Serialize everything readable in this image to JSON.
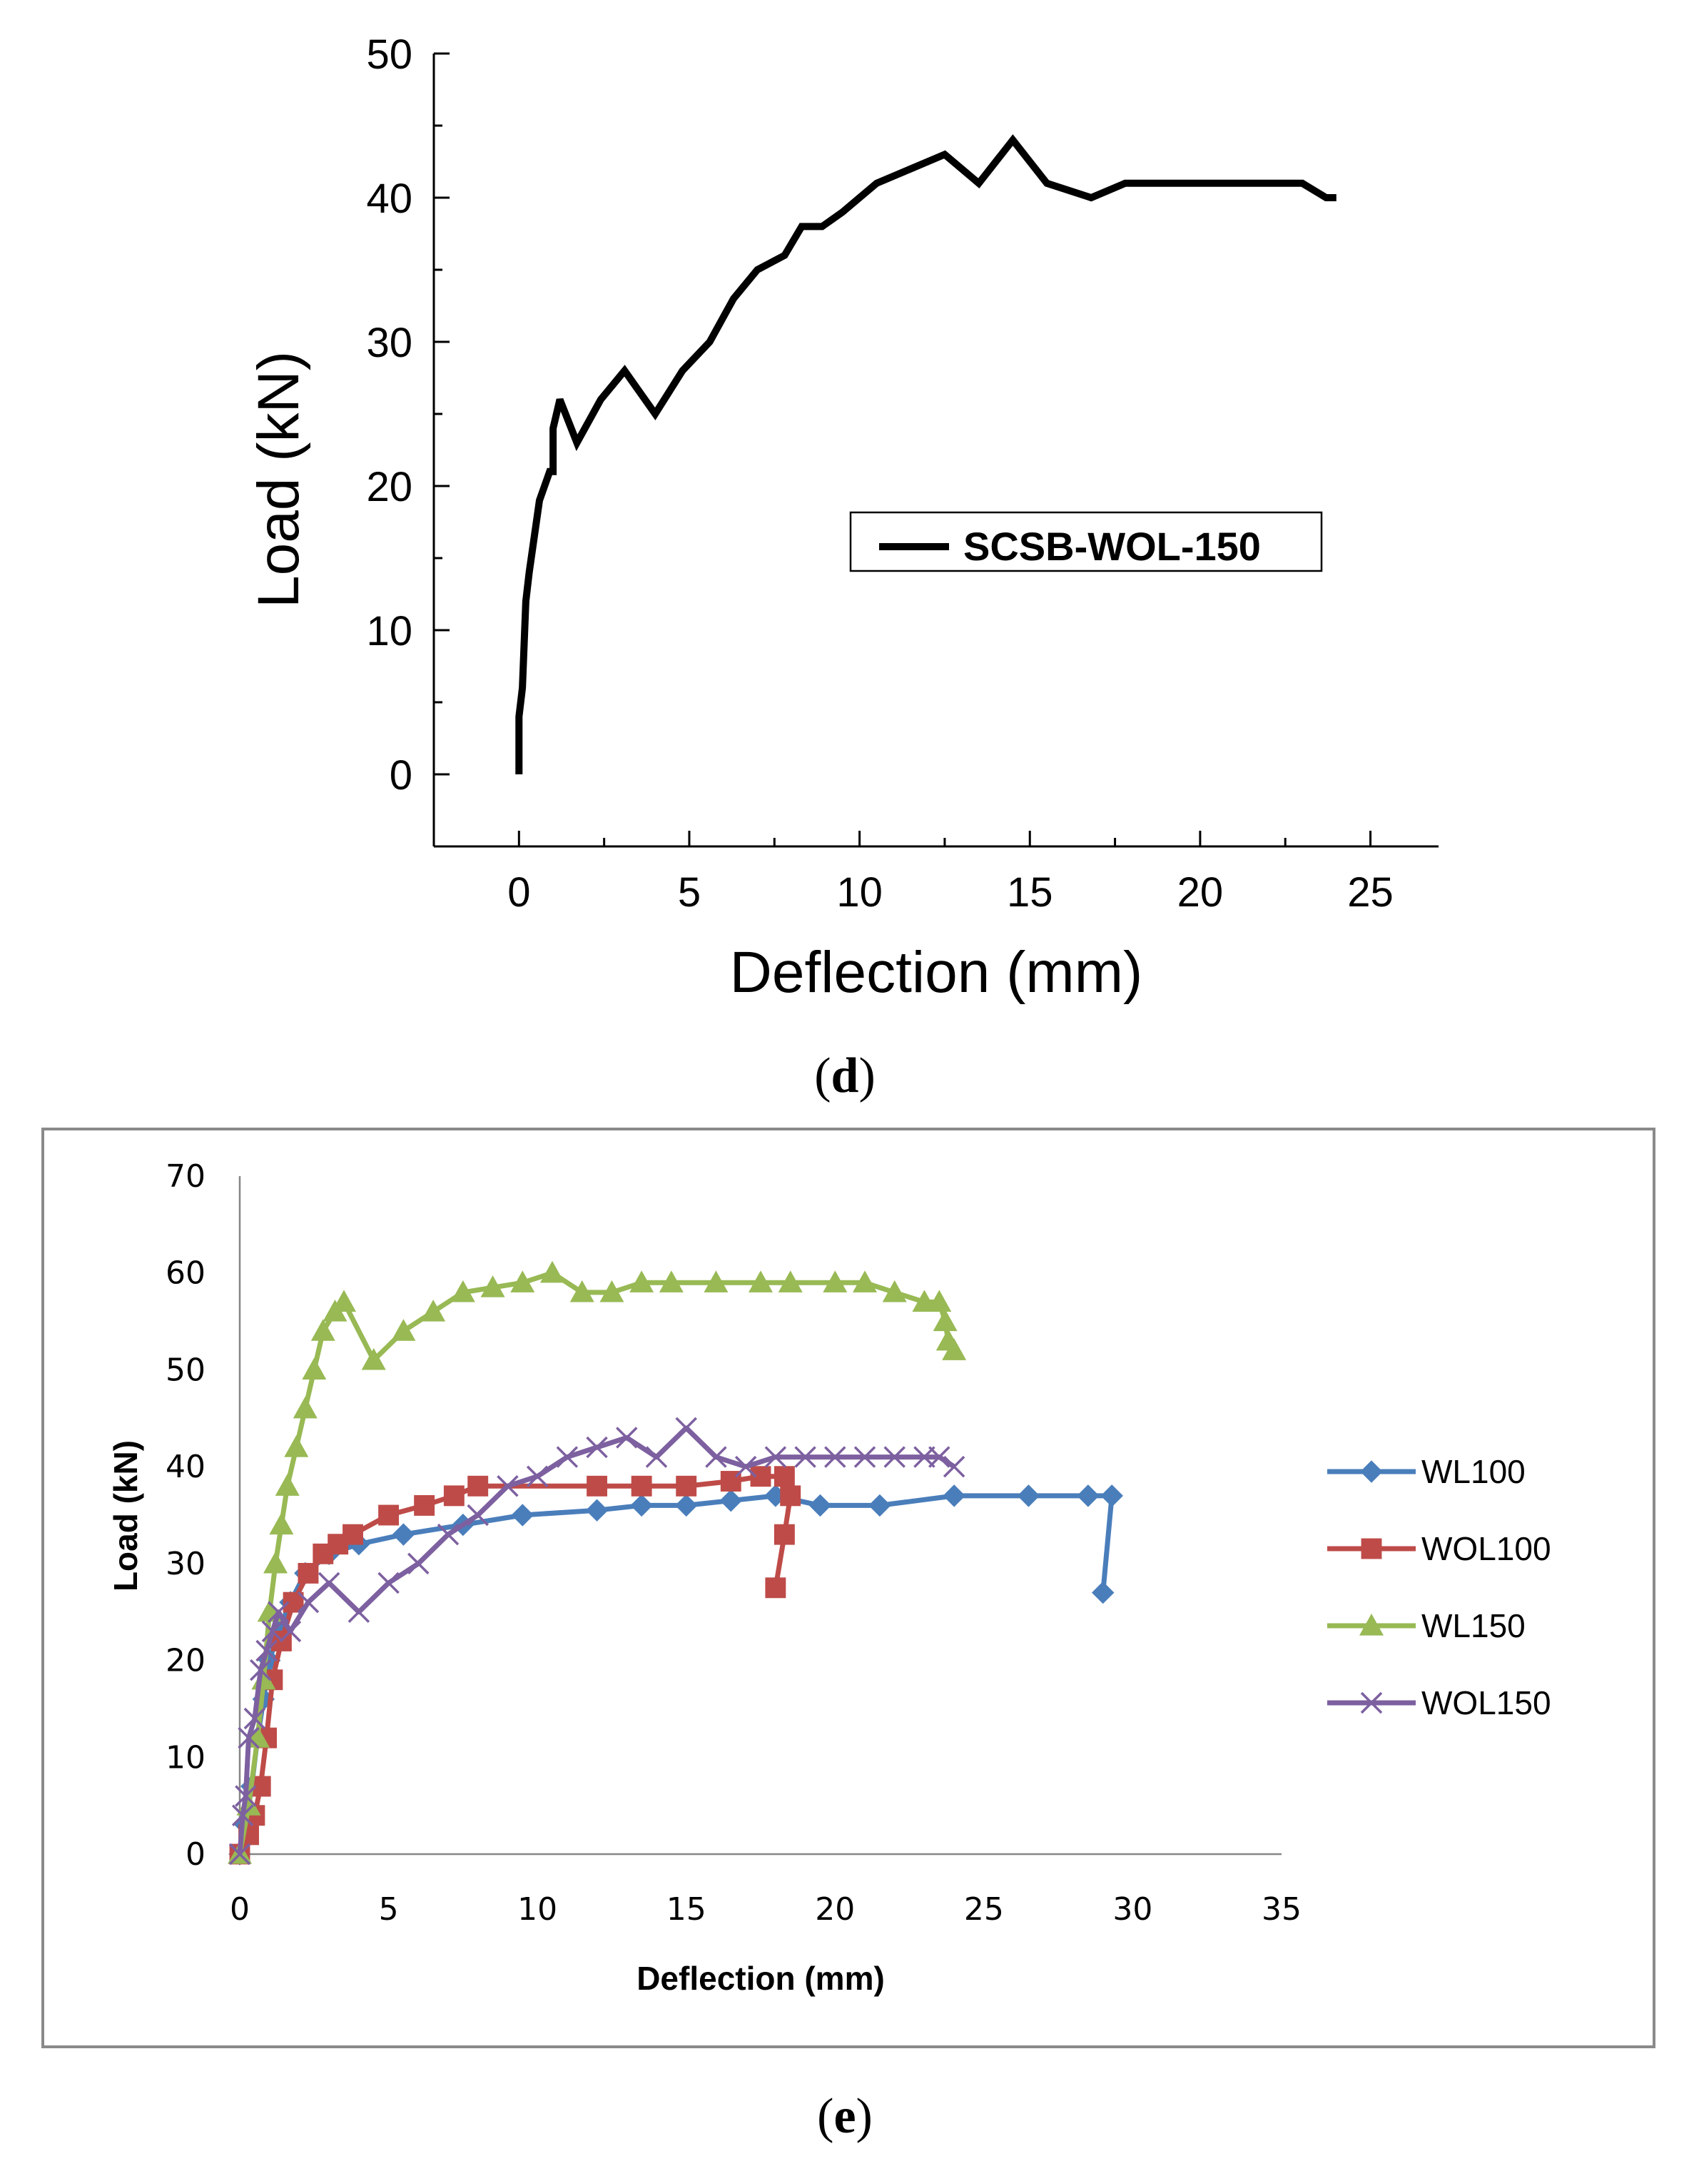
{
  "chart_data": [
    {
      "type": "line",
      "panel_label": "(d)",
      "panel_label_open": "(",
      "panel_label_letter": "d",
      "panel_label_close": ")",
      "xlabel": "Deflection (mm)",
      "ylabel": "Load (kN)",
      "xlim": [
        -2.5,
        27
      ],
      "ylim": [
        -5,
        50
      ],
      "xticks": [
        0,
        5,
        10,
        15,
        20,
        25
      ],
      "yticks": [
        0,
        10,
        20,
        30,
        40,
        50
      ],
      "grid": false,
      "legend_position": "center-right",
      "series": [
        {
          "name": "SCSB-WOL-150",
          "color": "#000000",
          "x": [
            0,
            0,
            0.1,
            0.2,
            0.3,
            0.6,
            0.9,
            1.0,
            1.0,
            1.2,
            1.7,
            2.4,
            3.1,
            4.0,
            4.8,
            5.6,
            6.3,
            7.0,
            7.8,
            8.3,
            8.9,
            9.5,
            10.5,
            11.5,
            12.5,
            13.5,
            14.5,
            15.5,
            16.8,
            17.8,
            19.0,
            20.0,
            21.0,
            22.0,
            23.0,
            23.7,
            24.0
          ],
          "y": [
            0,
            4,
            6,
            12,
            14,
            19,
            21,
            21,
            24,
            26,
            23,
            26,
            28,
            25,
            28,
            30,
            33,
            35,
            36,
            38,
            38,
            39,
            41,
            42,
            43,
            41,
            44,
            41,
            40,
            41,
            41,
            41,
            41,
            41,
            41,
            40,
            40
          ]
        }
      ]
    },
    {
      "type": "line",
      "panel_label": "(e)",
      "panel_label_open": "(",
      "panel_label_letter": "e",
      "panel_label_close": ")",
      "xlabel": "Deflection (mm)",
      "ylabel": "Load (kN)",
      "xlim": [
        0,
        35
      ],
      "ylim": [
        0,
        70
      ],
      "xticks": [
        0,
        5,
        10,
        15,
        20,
        25,
        30,
        35
      ],
      "yticks": [
        0,
        10,
        20,
        30,
        40,
        50,
        60,
        70
      ],
      "grid": false,
      "legend_position": "right",
      "series": [
        {
          "name": "WL100",
          "color": "#4a7ebb",
          "marker": "diamond",
          "x": [
            0,
            0.2,
            0.4,
            0.6,
            0.8,
            1.0,
            1.3,
            1.7,
            2.2,
            3.0,
            4.0,
            5.5,
            7.5,
            9.5,
            12.0,
            13.5,
            15.0,
            16.5,
            18.0,
            19.5,
            21.5,
            24.0,
            26.5,
            28.5,
            29.3,
            29.0
          ],
          "y": [
            0,
            3,
            7,
            12,
            16,
            20,
            23,
            26,
            29,
            31,
            32,
            33,
            34,
            35,
            35.5,
            36,
            36,
            36.5,
            37,
            36,
            36,
            37,
            37,
            37,
            37,
            27
          ]
        },
        {
          "name": "WOL100",
          "color": "#be4b48",
          "marker": "square",
          "x": [
            0,
            0.3,
            0.5,
            0.7,
            0.9,
            1.1,
            1.4,
            1.8,
            2.3,
            2.8,
            3.3,
            3.8,
            5.0,
            6.2,
            7.2,
            8.0,
            12.0,
            13.5,
            15.0,
            16.5,
            17.5,
            18.3,
            18.5,
            18.3,
            18.0
          ],
          "y": [
            0,
            2,
            4,
            7,
            12,
            18,
            22,
            26,
            29,
            31,
            32,
            33,
            35,
            36,
            37,
            38,
            38,
            38,
            38,
            38.5,
            39,
            39,
            37,
            33,
            27.5
          ]
        },
        {
          "name": "WL150",
          "color": "#98b954",
          "marker": "triangle",
          "x": [
            0,
            0.3,
            0.6,
            0.8,
            1.0,
            1.2,
            1.4,
            1.6,
            1.9,
            2.2,
            2.5,
            2.8,
            3.2,
            3.5,
            4.5,
            5.5,
            6.5,
            7.5,
            8.5,
            9.5,
            10.5,
            11.5,
            12.5,
            13.5,
            14.5,
            16.0,
            17.5,
            18.5,
            20.0,
            21.0,
            22.0,
            23.0,
            23.5,
            23.7,
            23.8,
            24.0
          ],
          "y": [
            0,
            5,
            12,
            18,
            25,
            30,
            34,
            38,
            42,
            46,
            50,
            54,
            56,
            57,
            51,
            54,
            56,
            58,
            58.5,
            59,
            60,
            58,
            58,
            59,
            59,
            59,
            59,
            59,
            59,
            59,
            58,
            57,
            57,
            55,
            53,
            52
          ]
        },
        {
          "name": "WOL150",
          "color": "#7d60a0",
          "marker": "x",
          "x": [
            0,
            0.1,
            0.2,
            0.3,
            0.5,
            0.7,
            0.9,
            1.1,
            1.3,
            1.7,
            2.3,
            3.0,
            4.0,
            5.0,
            6.0,
            7.0,
            8.0,
            9.0,
            10.0,
            11.0,
            12.0,
            13.0,
            14.0,
            15.0,
            16.0,
            17.0,
            18.0,
            19.0,
            20.0,
            21.0,
            22.0,
            23.0,
            23.5,
            24.0
          ],
          "y": [
            0,
            4,
            6,
            12,
            14,
            19,
            21,
            23,
            25,
            23,
            26,
            28,
            25,
            28,
            30,
            33,
            35,
            38,
            39,
            41,
            42,
            43,
            41,
            44,
            41,
            40,
            41,
            41,
            41,
            41,
            41,
            41,
            41,
            40
          ]
        }
      ]
    }
  ]
}
